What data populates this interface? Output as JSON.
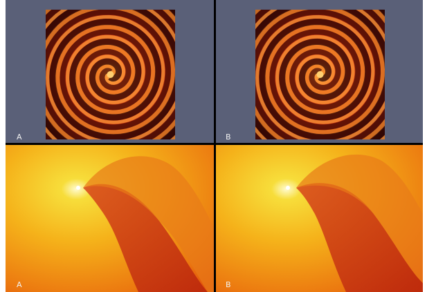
{
  "panels": [
    {
      "label": "A"
    },
    {
      "label": "B"
    },
    {
      "label": "A"
    },
    {
      "label": "B"
    }
  ]
}
